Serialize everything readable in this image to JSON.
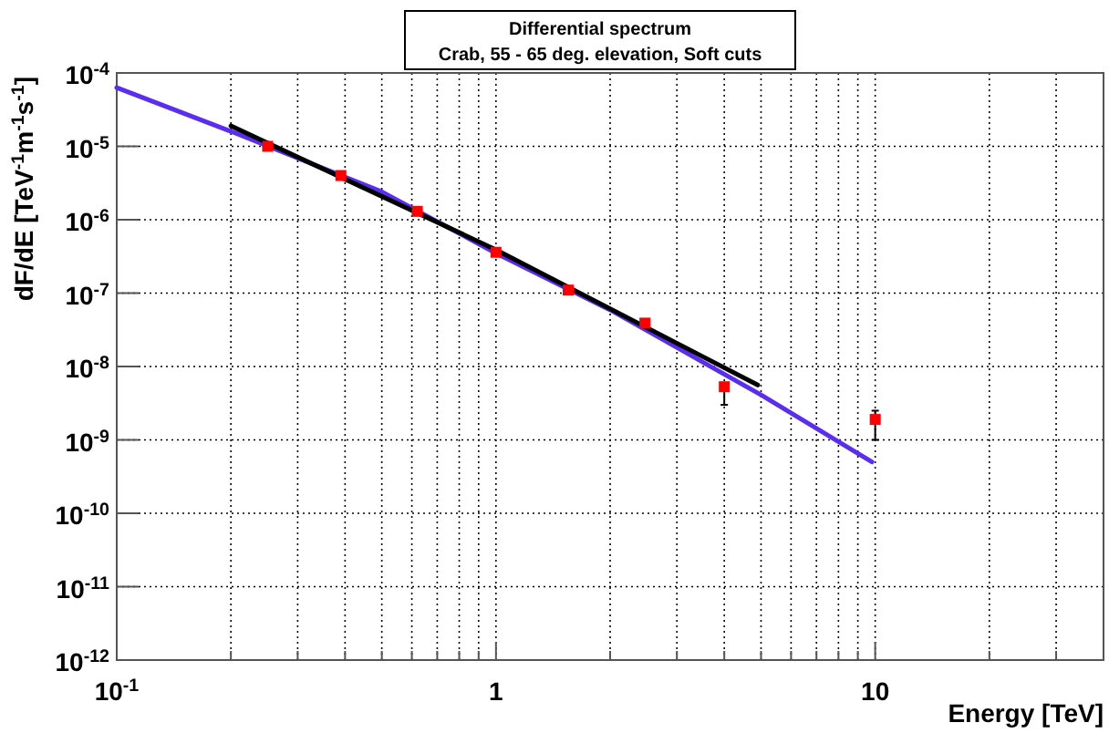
{
  "chart_data": {
    "type": "scatter",
    "title": "Differential spectrum",
    "subtitle": "Crab, 55 - 65 deg. elevation, Soft cuts",
    "xlabel": "Energy [TeV]",
    "ylabel": "dF/dE [TeV$^{-1}$m$^{-1}$s$^{-1}$]",
    "log": "xy",
    "grid": true,
    "xlim": [
      0.1,
      40
    ],
    "ylim": [
      1e-12,
      0.0001
    ],
    "xticks": [
      {
        "value": 0.1,
        "label": "10$^{-1}$"
      },
      {
        "value": 0.2,
        "label": null
      },
      {
        "value": 0.3,
        "label": null
      },
      {
        "value": 0.4,
        "label": null
      },
      {
        "value": 0.5,
        "label": null
      },
      {
        "value": 0.6,
        "label": null
      },
      {
        "value": 0.7,
        "label": null
      },
      {
        "value": 0.8,
        "label": null
      },
      {
        "value": 0.9,
        "label": null
      },
      {
        "value": 1,
        "label": "1"
      },
      {
        "value": 2,
        "label": null
      },
      {
        "value": 3,
        "label": null
      },
      {
        "value": 4,
        "label": null
      },
      {
        "value": 5,
        "label": null
      },
      {
        "value": 6,
        "label": null
      },
      {
        "value": 7,
        "label": null
      },
      {
        "value": 8,
        "label": null
      },
      {
        "value": 9,
        "label": null
      },
      {
        "value": 10,
        "label": "10"
      },
      {
        "value": 20,
        "label": null
      },
      {
        "value": 30,
        "label": null
      }
    ],
    "yticks": [
      {
        "value": 1e-12,
        "label": "10$^{-12}$"
      },
      {
        "value": 1e-11,
        "label": "10$^{-11}$"
      },
      {
        "value": 1e-10,
        "label": "10$^{-10}$"
      },
      {
        "value": 1e-09,
        "label": "10$^{-9}$"
      },
      {
        "value": 1e-08,
        "label": "10$^{-8}$"
      },
      {
        "value": 1e-07,
        "label": "10$^{-7}$"
      },
      {
        "value": 1e-06,
        "label": "10$^{-6}$"
      },
      {
        "value": 1e-05,
        "label": "10$^{-5}$"
      },
      {
        "value": 0.0001,
        "label": "10$^{-4}$"
      }
    ],
    "series": [
      {
        "type": "line",
        "color": "#5a2df0",
        "x": [
          0.1,
          0.2,
          0.5,
          1,
          2,
          5,
          9.8
        ],
        "values": [
          6.3e-05,
          1.6e-05,
          2.4e-06,
          3.5e-07,
          5.9e-08,
          4.1e-09,
          5e-10
        ]
      },
      {
        "type": "line",
        "color": "#000000",
        "x": [
          0.2,
          1,
          4.9
        ],
        "values": [
          1.9e-05,
          3.9e-07,
          5.6e-09
        ]
      },
      {
        "color": "#ff0000",
        "marker": "square",
        "x": [
          0.25,
          0.39,
          0.62,
          1,
          1.55,
          2.47,
          4,
          10
        ],
        "values": [
          1e-05,
          4e-06,
          1.3e-06,
          3.6e-07,
          1.1e-07,
          3.9e-08,
          5.3e-09,
          1.9e-09
        ],
        "errors": [
          null,
          null,
          null,
          null,
          null,
          null,
          [
            3e-09,
            5.5e-09
          ],
          [
            1e-09,
            2.5e-09
          ]
        ]
      }
    ]
  }
}
